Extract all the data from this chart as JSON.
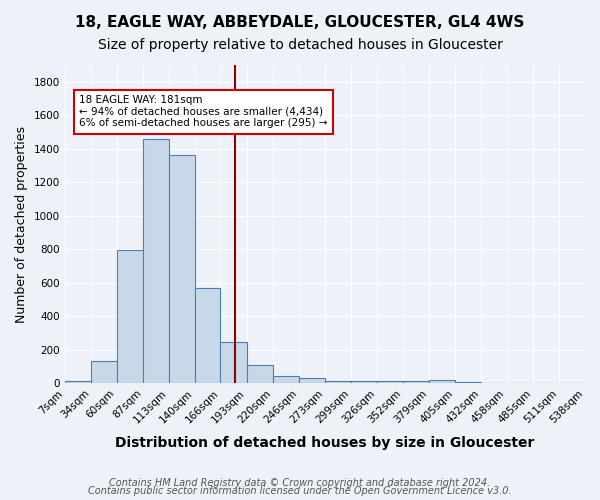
{
  "title1": "18, EAGLE WAY, ABBEYDALE, GLOUCESTER, GL4 4WS",
  "title2": "Size of property relative to detached houses in Gloucester",
  "xlabel": "Distribution of detached houses by size in Gloucester",
  "ylabel": "Number of detached properties",
  "bin_labels": [
    "7sqm",
    "34sqm",
    "60sqm",
    "87sqm",
    "113sqm",
    "140sqm",
    "166sqm",
    "193sqm",
    "220sqm",
    "246sqm",
    "273sqm",
    "299sqm",
    "326sqm",
    "352sqm",
    "379sqm",
    "405sqm",
    "432sqm",
    "458sqm",
    "485sqm",
    "511sqm",
    "538sqm"
  ],
  "bin_edges": [
    7,
    34,
    60,
    87,
    113,
    140,
    166,
    193,
    220,
    246,
    273,
    299,
    326,
    352,
    379,
    405,
    432,
    458,
    485,
    511,
    538
  ],
  "bar_heights": [
    10,
    135,
    795,
    1460,
    1360,
    570,
    248,
    110,
    40,
    28,
    15,
    15,
    12,
    10,
    20,
    5,
    0,
    0,
    0,
    0
  ],
  "bar_color": "#c8d8e8",
  "bar_edgecolor": "#4a7eb5",
  "vline_x": 181,
  "vline_color": "#8b0000",
  "annotation_text": "18 EAGLE WAY: 181sqm\n← 94% of detached houses are smaller (4,434)\n6% of semi-detached houses are larger (295) →",
  "annotation_box_color": "white",
  "annotation_box_edgecolor": "#cc0000",
  "ylim": [
    0,
    1900
  ],
  "yticks": [
    0,
    200,
    400,
    600,
    800,
    1000,
    1200,
    1400,
    1600,
    1800
  ],
  "background_color": "#eef2f8",
  "grid_color": "#ffffff",
  "footer1": "Contains HM Land Registry data © Crown copyright and database right 2024.",
  "footer2": "Contains public sector information licensed under the Open Government Licence v3.0.",
  "title1_fontsize": 11,
  "title2_fontsize": 10,
  "xlabel_fontsize": 10,
  "ylabel_fontsize": 9,
  "tick_fontsize": 7.5,
  "footer_fontsize": 7
}
